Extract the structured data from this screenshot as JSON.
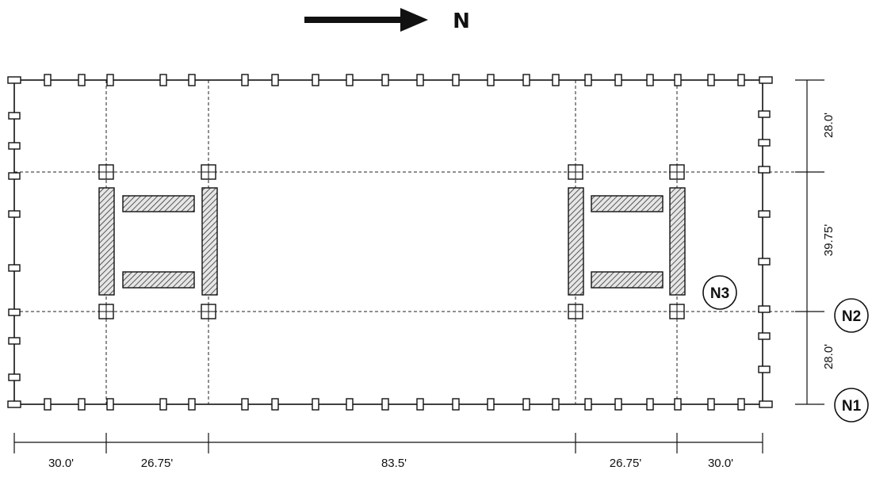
{
  "north_arrow": {
    "label": "N"
  },
  "horizontal_dimensions": [
    "30.0'",
    "26.75'",
    "83.5'",
    "26.75'",
    "30.0'"
  ],
  "vertical_dimensions": [
    "28.0'",
    "39.75'",
    "28.0'"
  ],
  "node_labels": {
    "n1": "N1",
    "n2": "N2",
    "n3": "N3"
  },
  "colors": {
    "line": "#111111",
    "hatch": "#333333",
    "background": "#ffffff"
  }
}
